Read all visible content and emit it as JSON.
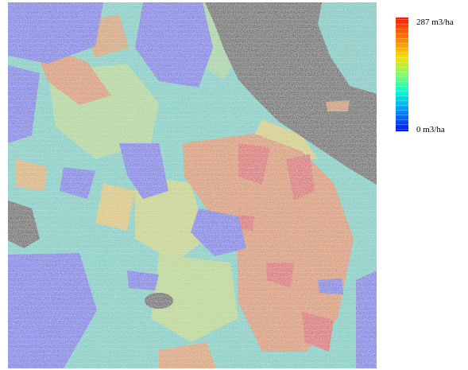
{
  "legend": {
    "max_label": "287 m3/ha",
    "min_label": "0 m3/ha"
  }
}
